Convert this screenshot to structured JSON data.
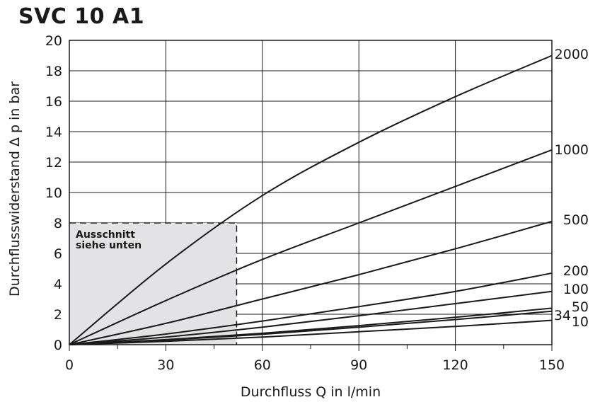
{
  "chart_data": {
    "type": "line",
    "title": "SVC 10 A1",
    "xlabel": "Durchfluss Q in l/min",
    "ylabel": "Durchflusswiderstand Δ p in bar",
    "xlim": [
      0,
      150
    ],
    "ylim": [
      0,
      20
    ],
    "xticks": [
      0,
      30,
      60,
      90,
      120,
      150
    ],
    "yticks": [
      0,
      2,
      4,
      6,
      8,
      10,
      12,
      14,
      16,
      18,
      20
    ],
    "grid": true,
    "series": [
      {
        "name": "2000",
        "x": [
          0,
          30,
          60,
          90,
          120,
          150
        ],
        "y": [
          0,
          5.3,
          9.8,
          13.3,
          16.3,
          19.0
        ]
      },
      {
        "name": "1000",
        "x": [
          0,
          30,
          60,
          90,
          120,
          150
        ],
        "y": [
          0,
          2.9,
          5.6,
          8.0,
          10.4,
          12.8
        ]
      },
      {
        "name": "500",
        "x": [
          0,
          30,
          60,
          90,
          120,
          150
        ],
        "y": [
          0,
          1.4,
          3.0,
          4.6,
          6.3,
          8.1
        ]
      },
      {
        "name": "200",
        "x": [
          0,
          30,
          60,
          90,
          120,
          150
        ],
        "y": [
          0,
          0.7,
          1.55,
          2.5,
          3.5,
          4.7
        ]
      },
      {
        "name": "100",
        "x": [
          0,
          30,
          60,
          90,
          120,
          150
        ],
        "y": [
          0,
          0.5,
          1.15,
          1.9,
          2.7,
          3.5
        ]
      },
      {
        "name": "50",
        "x": [
          0,
          30,
          60,
          90,
          120,
          150
        ],
        "y": [
          0,
          0.33,
          0.75,
          1.25,
          1.8,
          2.4
        ]
      },
      {
        "name": "34",
        "x": [
          0,
          30,
          60,
          90,
          120,
          150
        ],
        "y": [
          0,
          0.3,
          0.68,
          1.15,
          1.65,
          2.2
        ]
      },
      {
        "name": "10",
        "x": [
          0,
          30,
          60,
          90,
          120,
          150
        ],
        "y": [
          0,
          0.22,
          0.5,
          0.85,
          1.2,
          1.6
        ]
      }
    ],
    "annotations": {
      "region": {
        "x": [
          0,
          52
        ],
        "y": [
          0,
          8
        ]
      },
      "text_line1": "Ausschnitt",
      "text_line2": "siehe unten"
    }
  }
}
